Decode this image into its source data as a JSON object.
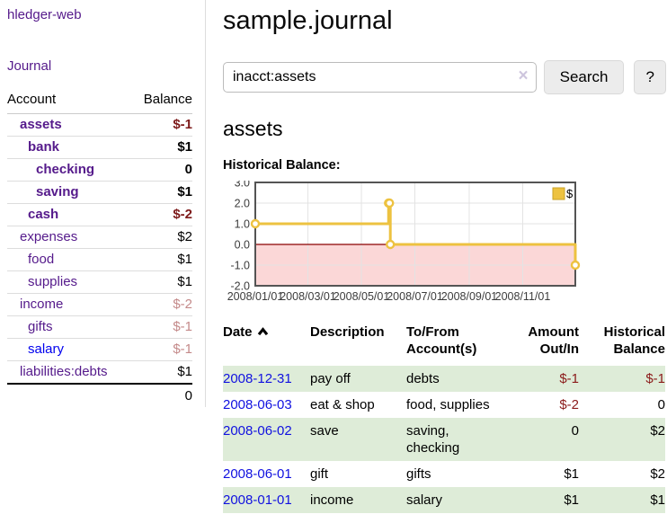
{
  "app": {
    "title": "hledger-web"
  },
  "colors": {
    "link_purple": "#551a8b",
    "link_blue": "#0000ee",
    "date_link_blue": "#1111e0",
    "negative_strong": "#7d1a1a",
    "negative_soft": "#c48a8a",
    "table_negative": "#8b1a1a",
    "row_stripe_green": "#deecd8",
    "chart_line_gold": "#edc240",
    "chart_negative_region": "#fbd7d7",
    "chart_zero_line": "#8b0000"
  },
  "sidebar": {
    "journal_link": "Journal",
    "accounts": {
      "header_account": "Account",
      "header_balance": "Balance",
      "rows": [
        {
          "account": "assets",
          "balance": "$-1",
          "indent": 1,
          "bold": true,
          "neg": "strong"
        },
        {
          "account": "bank",
          "balance": "$1",
          "indent": 2,
          "bold": true,
          "neg": null
        },
        {
          "account": "checking",
          "balance": "0",
          "indent": 3,
          "bold": true,
          "neg": null
        },
        {
          "account": "saving",
          "balance": "$1",
          "indent": 3,
          "bold": true,
          "neg": null
        },
        {
          "account": "cash",
          "balance": "$-2",
          "indent": 2,
          "bold": true,
          "neg": "strong"
        },
        {
          "account": "expenses",
          "balance": "$2",
          "indent": 1,
          "bold": false,
          "neg": null
        },
        {
          "account": "food",
          "balance": "$1",
          "indent": 2,
          "bold": false,
          "neg": null
        },
        {
          "account": "supplies",
          "balance": "$1",
          "indent": 2,
          "bold": false,
          "neg": null
        },
        {
          "account": "income",
          "balance": "$-2",
          "indent": 1,
          "bold": false,
          "neg": "soft"
        },
        {
          "account": "gifts",
          "balance": "$-1",
          "indent": 2,
          "bold": false,
          "neg": "soft"
        },
        {
          "account": "salary",
          "balance": "$-1",
          "indent": 2,
          "bold": false,
          "neg": "soft",
          "link": "blue"
        },
        {
          "account": "liabilities:debts",
          "balance": "$1",
          "indent": 1,
          "bold": false,
          "neg": null
        }
      ],
      "total": "0"
    }
  },
  "main": {
    "title": "sample.journal",
    "search": {
      "value": "inacct:assets",
      "clear_icon": "×",
      "button_label": "Search",
      "help_label": "?"
    },
    "account_heading": "assets",
    "chart_label": "Historical Balance:"
  },
  "chart_data": {
    "type": "line",
    "title": "Historical Balance:",
    "legend": {
      "label": "$",
      "position": "top-right",
      "color": "#edc240"
    },
    "series": [
      {
        "name": "$",
        "color": "#edc240",
        "steps": true,
        "points": [
          [
            "2008-01-01",
            1
          ],
          [
            "2008-06-01",
            2
          ],
          [
            "2008-06-02",
            2
          ],
          [
            "2008-06-03",
            0
          ],
          [
            "2008-12-31",
            -1
          ]
        ]
      }
    ],
    "xlim": [
      "2008-01-01",
      "2008-12-31"
    ],
    "ylim": [
      -2,
      3
    ],
    "x_ticks": [
      "2008/01/01",
      "2008/03/01",
      "2008/05/01",
      "2008/07/01",
      "2008/09/01",
      "2008/11/01"
    ],
    "y_ticks": [
      3.0,
      2.0,
      1.0,
      0.0,
      -1.0,
      -2.0
    ],
    "grid": true,
    "border_color": "#545454",
    "grid_color": "#e3e3e3",
    "zero_line_color": "#8b0000",
    "negative_region_color": "#fbd7d7"
  },
  "register": {
    "headers": [
      {
        "label": "Date",
        "sort": "asc"
      },
      {
        "label": "Description"
      },
      {
        "label": "To/From Account(s)"
      },
      {
        "label": "Amount Out/In"
      },
      {
        "label": "Historical Balance"
      }
    ],
    "rows": [
      {
        "date": "2008-12-31",
        "description": "pay off",
        "accounts": "debts",
        "amount": "$-1",
        "balance": "$-1",
        "amount_neg": true,
        "balance_neg": true
      },
      {
        "date": "2008-06-03",
        "description": "eat & shop",
        "accounts": "food, supplies",
        "amount": "$-2",
        "balance": "0",
        "amount_neg": true,
        "balance_neg": false
      },
      {
        "date": "2008-06-02",
        "description": "save",
        "accounts": "saving, checking",
        "amount": "0",
        "balance": "$2",
        "amount_neg": false,
        "balance_neg": false
      },
      {
        "date": "2008-06-01",
        "description": "gift",
        "accounts": "gifts",
        "amount": "$1",
        "balance": "$2",
        "amount_neg": false,
        "balance_neg": false
      },
      {
        "date": "2008-01-01",
        "description": "income",
        "accounts": "salary",
        "amount": "$1",
        "balance": "$1",
        "amount_neg": false,
        "balance_neg": false
      }
    ]
  }
}
